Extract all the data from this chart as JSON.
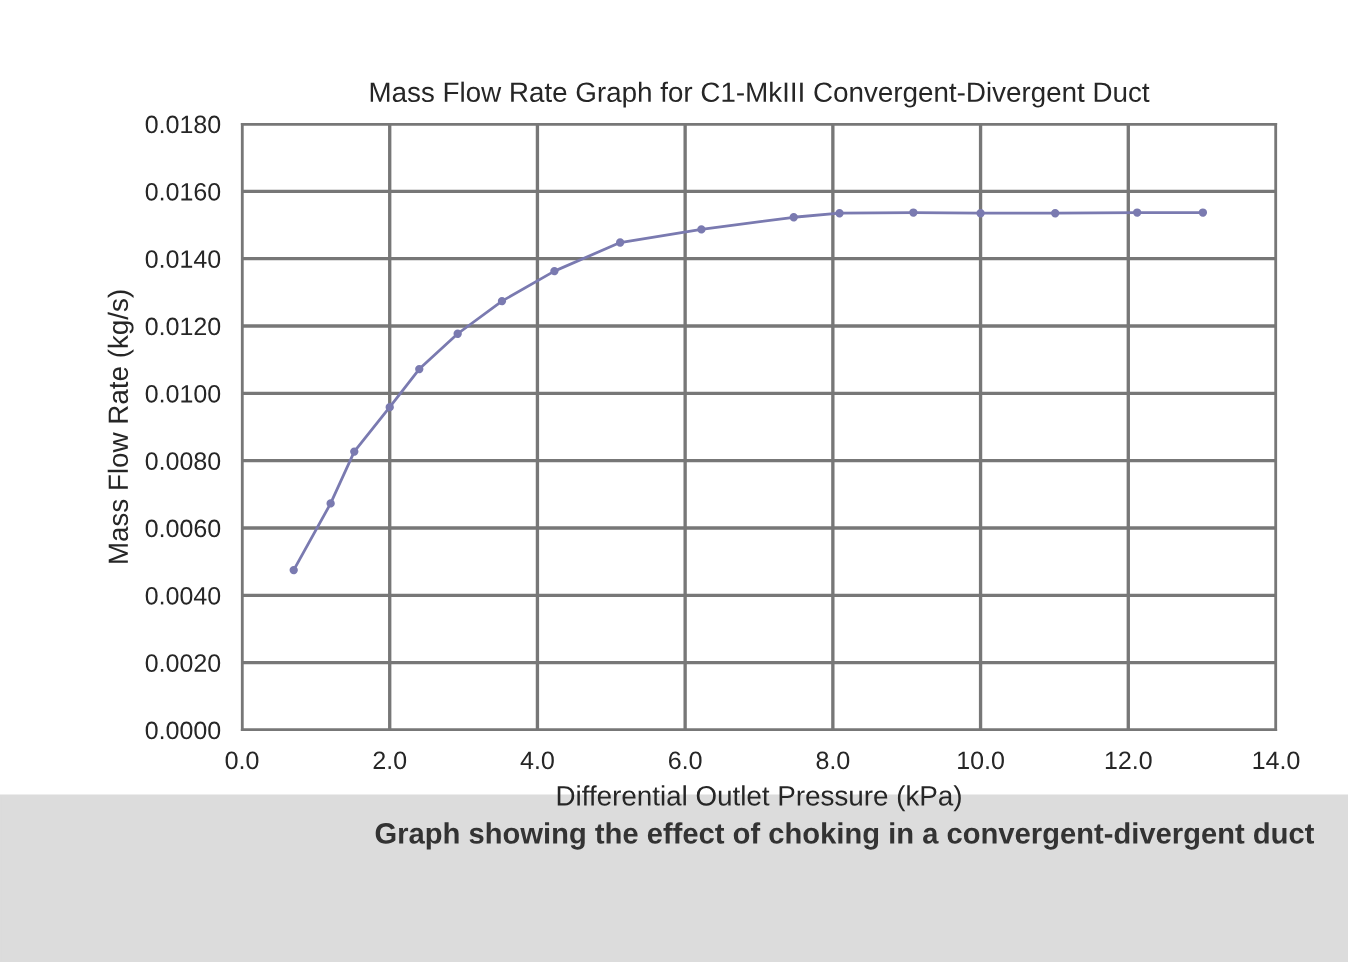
{
  "chart_data": {
    "type": "line",
    "title": "Mass Flow Rate Graph for C1-MkIII Convergent-Divergent Duct",
    "xlabel": "Differential Outlet Pressure (kPa)",
    "ylabel": "Mass Flow Rate (kg/s)",
    "annotations": [
      "Graph showing the effect of choking in a convergent-divergent duct"
    ],
    "series": [
      {
        "color": "#7a7ab0",
        "x": [
          0.7,
          1.2,
          1.52,
          2.0,
          2.4,
          2.92,
          3.52,
          4.23,
          5.12,
          6.22,
          7.47,
          8.09,
          9.09,
          10.0,
          11.01,
          12.12,
          13.01
        ],
        "values": [
          0.00475,
          0.00673,
          0.00827,
          0.00959,
          0.01072,
          0.01177,
          0.01274,
          0.01363,
          0.01448,
          0.01487,
          0.01523,
          0.01535,
          0.01537,
          0.01535,
          0.01535,
          0.01537,
          0.01537
        ]
      }
    ],
    "marker": "circle",
    "grid": true,
    "xlim": [
      0,
      14
    ],
    "ylim": [
      0,
      0.018
    ],
    "xticks": [
      {
        "value": 0,
        "label": "0.0"
      },
      {
        "value": 2,
        "label": "2.0"
      },
      {
        "value": 4,
        "label": "4.0"
      },
      {
        "value": 6,
        "label": "6.0"
      },
      {
        "value": 8,
        "label": "8.0"
      },
      {
        "value": 10,
        "label": "10.0"
      },
      {
        "value": 12,
        "label": "12.0"
      },
      {
        "value": 14,
        "label": "14.0"
      }
    ],
    "yticks": [
      {
        "value": 0,
        "label": "0.0000"
      },
      {
        "value": 0.002,
        "label": "0.0020"
      },
      {
        "value": 0.004,
        "label": "0.0040"
      },
      {
        "value": 0.006,
        "label": "0.0060"
      },
      {
        "value": 0.008,
        "label": "0.0080"
      },
      {
        "value": 0.01,
        "label": "0.0100"
      },
      {
        "value": 0.012,
        "label": "0.0120"
      },
      {
        "value": 0.014,
        "label": "0.0140"
      },
      {
        "value": 0.016,
        "label": "0.0160"
      },
      {
        "value": 0.018,
        "label": "0.0180"
      }
    ]
  }
}
